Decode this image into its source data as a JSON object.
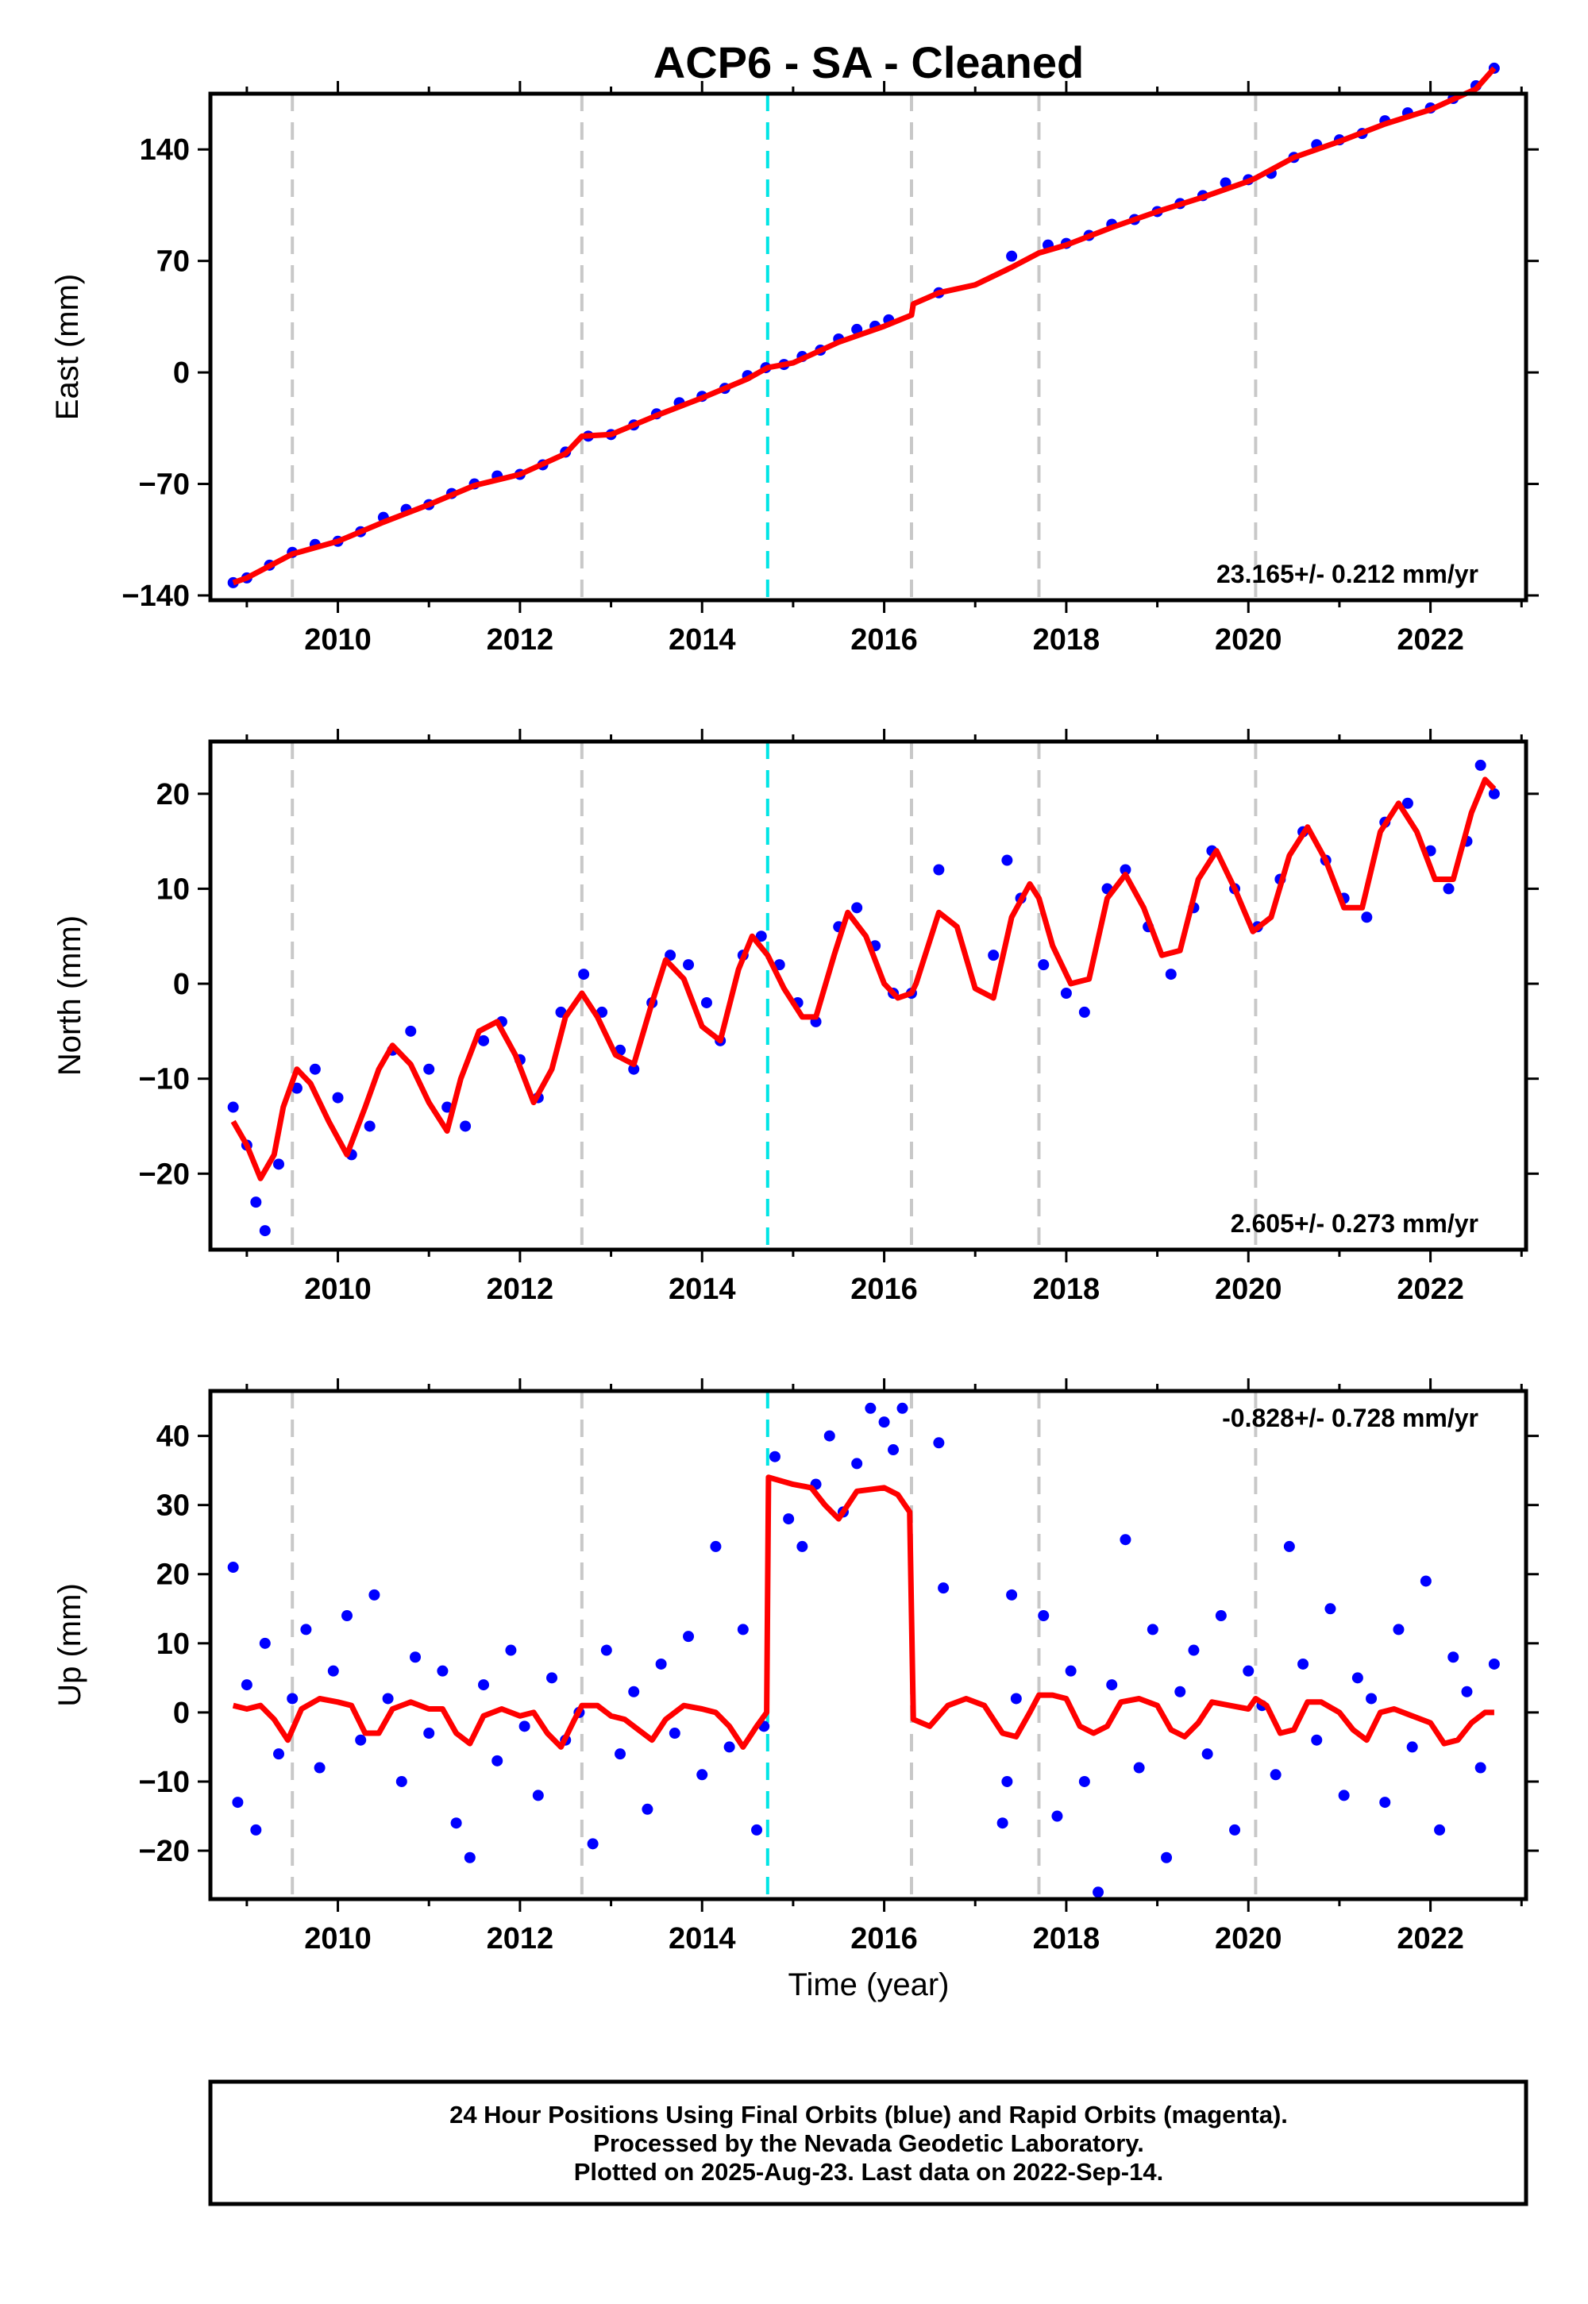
{
  "title": "ACP6  - SA - Cleaned",
  "footer": {
    "line1": "24 Hour Positions Using Final Orbits (blue) and Rapid Orbits (magenta).",
    "line2": "Processed by the Nevada Geodetic Laboratory.",
    "line3": "Plotted on 2025-Aug-23. Last data on 2022-Sep-14."
  },
  "colors": {
    "points": "#0000ff",
    "model": "#ff0000",
    "equipment_change": "#c8c8c8",
    "special_event": "#00e5e5"
  },
  "chart_data": [
    {
      "type": "scatter",
      "title": "",
      "xlabel": "",
      "ylabel": "East (mm)",
      "xlim": [
        2008.6,
        2023.05
      ],
      "ylim": [
        -143,
        175
      ],
      "x_ticks": [
        2010,
        2012,
        2014,
        2016,
        2018,
        2020,
        2022
      ],
      "y_ticks": [
        -140,
        -70,
        0,
        70,
        140
      ],
      "rate_text": "23.165+/- 0.212 mm/yr",
      "vertical_lines": {
        "gray": [
          2009.5,
          2012.68,
          2016.3,
          2017.7,
          2020.08
        ],
        "cyan": [
          2014.72
        ]
      },
      "series": [
        {
          "kind": "points",
          "x": [
            2008.85,
            2009.0,
            2009.25,
            2009.5,
            2009.75,
            2010.0,
            2010.25,
            2010.5,
            2010.75,
            2011.0,
            2011.25,
            2011.5,
            2011.75,
            2012.0,
            2012.25,
            2012.5,
            2012.75,
            2013.0,
            2013.25,
            2013.5,
            2013.75,
            2014.0,
            2014.25,
            2014.5,
            2014.7,
            2014.9,
            2015.1,
            2015.3,
            2015.5,
            2015.7,
            2015.9,
            2016.05,
            2016.6,
            2017.4,
            2017.8,
            2018.0,
            2018.25,
            2018.5,
            2018.75,
            2019.0,
            2019.25,
            2019.5,
            2019.75,
            2020.0,
            2020.25,
            2020.5,
            2020.75,
            2021.0,
            2021.25,
            2021.5,
            2021.75,
            2022.0,
            2022.25,
            2022.5,
            2022.7
          ],
          "y": [
            -132,
            -129,
            -121,
            -113,
            -108,
            -106,
            -100,
            -91,
            -86,
            -83,
            -76,
            -70,
            -65,
            -64,
            -58,
            -50,
            -40,
            -39,
            -33,
            -26,
            -19,
            -15,
            -10,
            -2,
            3,
            5,
            10,
            14,
            21,
            27,
            29,
            33,
            50,
            73,
            80,
            81,
            86,
            93,
            96,
            101,
            106,
            111,
            119,
            121,
            125,
            135,
            143,
            146,
            150,
            158,
            163,
            166,
            172,
            180,
            191
          ]
        },
        {
          "kind": "line",
          "x": [
            2008.85,
            2009.0,
            2009.5,
            2010.0,
            2010.5,
            2011.0,
            2011.5,
            2012.0,
            2012.5,
            2012.68,
            2013.0,
            2013.5,
            2014.0,
            2014.5,
            2014.72,
            2015.0,
            2015.5,
            2016.0,
            2016.3,
            2016.32,
            2016.6,
            2017.0,
            2017.4,
            2017.7,
            2018.0,
            2018.5,
            2019.0,
            2019.5,
            2020.0,
            2020.08,
            2020.5,
            2021.0,
            2021.5,
            2022.0,
            2022.5,
            2022.7
          ],
          "y": [
            -132,
            -129,
            -114,
            -106,
            -94,
            -83,
            -71,
            -64,
            -51,
            -40,
            -39,
            -27,
            -16,
            -4,
            3,
            6,
            19,
            29,
            36,
            43,
            50,
            55,
            66,
            75,
            80,
            91,
            101,
            110,
            120,
            122,
            135,
            145,
            156,
            165,
            178,
            191
          ]
        }
      ]
    },
    {
      "type": "scatter",
      "title": "",
      "xlabel": "",
      "ylabel": "North (mm)",
      "xlim": [
        2008.6,
        2023.05
      ],
      "ylim": [
        -28,
        25.5
      ],
      "x_ticks": [
        2010,
        2012,
        2014,
        2016,
        2018,
        2020,
        2022
      ],
      "y_ticks": [
        -20,
        -10,
        0,
        10,
        20
      ],
      "rate_text": "2.605+/- 0.273 mm/yr",
      "vertical_lines": {
        "gray": [
          2009.5,
          2012.68,
          2016.3,
          2017.7,
          2020.08
        ],
        "cyan": [
          2014.72
        ]
      },
      "series": [
        {
          "kind": "points",
          "x": [
            2008.85,
            2009.0,
            2009.1,
            2009.2,
            2009.35,
            2009.55,
            2009.75,
            2010.0,
            2010.15,
            2010.35,
            2010.6,
            2010.8,
            2011.0,
            2011.2,
            2011.4,
            2011.6,
            2011.8,
            2012.0,
            2012.2,
            2012.45,
            2012.7,
            2012.9,
            2013.1,
            2013.25,
            2013.45,
            2013.65,
            2013.85,
            2014.05,
            2014.2,
            2014.45,
            2014.65,
            2014.85,
            2015.05,
            2015.25,
            2015.5,
            2015.7,
            2015.9,
            2016.1,
            2016.3,
            2016.6,
            2017.2,
            2017.35,
            2017.5,
            2017.75,
            2018.0,
            2018.2,
            2018.45,
            2018.65,
            2018.9,
            2019.15,
            2019.4,
            2019.6,
            2019.85,
            2020.1,
            2020.35,
            2020.6,
            2020.85,
            2021.05,
            2021.3,
            2021.5,
            2021.75,
            2022.0,
            2022.2,
            2022.4,
            2022.55,
            2022.7
          ],
          "y": [
            -13,
            -17,
            -23,
            -26,
            -19,
            -11,
            -9,
            -12,
            -18,
            -15,
            -7,
            -5,
            -9,
            -13,
            -15,
            -6,
            -4,
            -8,
            -12,
            -3,
            1,
            -3,
            -7,
            -9,
            -2,
            3,
            2,
            -2,
            -6,
            3,
            5,
            2,
            -2,
            -4,
            6,
            8,
            4,
            -1,
            -1,
            12,
            3,
            13,
            9,
            2,
            -1,
            -3,
            10,
            12,
            6,
            1,
            8,
            14,
            10,
            6,
            11,
            16,
            13,
            9,
            7,
            17,
            19,
            14,
            10,
            15,
            23,
            20
          ]
        },
        {
          "kind": "line",
          "x": [
            2008.85,
            2009.0,
            2009.15,
            2009.3,
            2009.4,
            2009.55,
            2009.7,
            2009.9,
            2010.1,
            2010.3,
            2010.45,
            2010.6,
            2010.8,
            2011.0,
            2011.2,
            2011.35,
            2011.55,
            2011.75,
            2011.95,
            2012.15,
            2012.35,
            2012.5,
            2012.68,
            2012.85,
            2013.05,
            2013.25,
            2013.45,
            2013.6,
            2013.8,
            2014.0,
            2014.2,
            2014.4,
            2014.55,
            2014.72,
            2014.9,
            2015.1,
            2015.25,
            2015.45,
            2015.6,
            2015.8,
            2016.0,
            2016.15,
            2016.3,
            2016.35,
            2016.6,
            2016.8,
            2017.0,
            2017.2,
            2017.4,
            2017.6,
            2017.7,
            2017.85,
            2018.05,
            2018.25,
            2018.45,
            2018.65,
            2018.85,
            2019.05,
            2019.25,
            2019.45,
            2019.65,
            2019.85,
            2020.05,
            2020.25,
            2020.45,
            2020.65,
            2020.85,
            2021.05,
            2021.25,
            2021.45,
            2021.65,
            2021.85,
            2022.05,
            2022.25,
            2022.45,
            2022.6,
            2022.7
          ],
          "y": [
            -14.5,
            -17,
            -20.5,
            -18,
            -13,
            -9,
            -10.5,
            -14.5,
            -18,
            -13,
            -9,
            -6.5,
            -8.5,
            -12.5,
            -15.5,
            -10,
            -5,
            -4,
            -7.5,
            -12.5,
            -9,
            -3.5,
            -1,
            -3.5,
            -7.5,
            -8.5,
            -2,
            2.5,
            0.5,
            -4.5,
            -6,
            1.5,
            5,
            3,
            -0.5,
            -3.5,
            -3.5,
            3,
            7.5,
            5,
            0,
            -1.5,
            -1,
            0,
            7.5,
            6,
            -0.5,
            -1.5,
            7,
            10.5,
            9,
            4,
            0,
            0.5,
            9,
            11.5,
            8,
            3,
            3.5,
            11,
            14,
            10,
            5.5,
            7,
            13.5,
            16.5,
            13,
            8,
            8,
            16,
            19,
            16,
            11,
            11,
            18,
            21.5,
            20.5
          ]
        }
      ]
    },
    {
      "type": "scatter",
      "title": "",
      "xlabel": "Time (year)",
      "ylabel": "Up (mm)",
      "xlim": [
        2008.6,
        2023.05
      ],
      "ylim": [
        -27,
        46.5
      ],
      "x_ticks": [
        2010,
        2012,
        2014,
        2016,
        2018,
        2020,
        2022
      ],
      "y_ticks": [
        -20,
        -10,
        0,
        10,
        20,
        30,
        40
      ],
      "rate_text": "-0.828+/- 0.728 mm/yr",
      "vertical_lines": {
        "gray": [
          2009.5,
          2012.68,
          2016.3,
          2017.7,
          2020.08
        ],
        "cyan": [
          2014.72
        ]
      },
      "series": [
        {
          "kind": "points",
          "x": [
            2008.85,
            2008.9,
            2009.0,
            2009.1,
            2009.2,
            2009.35,
            2009.5,
            2009.65,
            2009.8,
            2009.95,
            2010.1,
            2010.25,
            2010.4,
            2010.55,
            2010.7,
            2010.85,
            2011.0,
            2011.15,
            2011.3,
            2011.45,
            2011.6,
            2011.75,
            2011.9,
            2012.05,
            2012.2,
            2012.35,
            2012.5,
            2012.65,
            2012.8,
            2012.95,
            2013.1,
            2013.25,
            2013.4,
            2013.55,
            2013.7,
            2013.85,
            2014.0,
            2014.15,
            2014.3,
            2014.45,
            2014.6,
            2014.68,
            2014.8,
            2014.95,
            2015.1,
            2015.25,
            2015.4,
            2015.55,
            2015.7,
            2015.85,
            2016.0,
            2016.1,
            2016.2,
            2016.6,
            2016.65,
            2017.3,
            2017.35,
            2017.4,
            2017.45,
            2017.75,
            2017.9,
            2018.05,
            2018.2,
            2018.35,
            2018.5,
            2018.65,
            2018.8,
            2018.95,
            2019.1,
            2019.25,
            2019.4,
            2019.55,
            2019.7,
            2019.85,
            2020.0,
            2020.15,
            2020.3,
            2020.45,
            2020.6,
            2020.75,
            2020.9,
            2021.05,
            2021.2,
            2021.35,
            2021.5,
            2021.65,
            2021.8,
            2021.95,
            2022.1,
            2022.25,
            2022.4,
            2022.55,
            2022.7
          ],
          "y": [
            21,
            -13,
            4,
            -17,
            10,
            -6,
            2,
            12,
            -8,
            6,
            14,
            -4,
            17,
            2,
            -10,
            8,
            -3,
            6,
            -16,
            -21,
            4,
            -7,
            9,
            -2,
            -12,
            5,
            -4,
            0,
            -19,
            9,
            -6,
            3,
            -14,
            7,
            -3,
            11,
            -9,
            24,
            -5,
            12,
            -17,
            -2,
            37,
            28,
            24,
            33,
            40,
            29,
            36,
            44,
            42,
            38,
            44,
            39,
            18,
            -16,
            -10,
            17,
            2,
            14,
            -15,
            6,
            -10,
            -26,
            4,
            25,
            -8,
            12,
            -21,
            3,
            9,
            -6,
            14,
            -17,
            6,
            1,
            -9,
            24,
            7,
            -4,
            15,
            -12,
            5,
            2,
            -13,
            12,
            -5,
            19,
            -17,
            8,
            3,
            -8,
            7
          ]
        },
        {
          "kind": "line",
          "x": [
            2008.85,
            2009.0,
            2009.15,
            2009.3,
            2009.45,
            2009.6,
            2009.8,
            2010.0,
            2010.15,
            2010.3,
            2010.45,
            2010.6,
            2010.8,
            2011.0,
            2011.15,
            2011.3,
            2011.45,
            2011.6,
            2011.8,
            2012.0,
            2012.15,
            2012.3,
            2012.45,
            2012.6,
            2012.68,
            2012.85,
            2013.0,
            2013.15,
            2013.3,
            2013.45,
            2013.6,
            2013.8,
            2014.0,
            2014.15,
            2014.3,
            2014.45,
            2014.6,
            2014.71,
            2014.73,
            2015.0,
            2015.2,
            2015.35,
            2015.5,
            2015.7,
            2016.0,
            2016.15,
            2016.28,
            2016.32,
            2016.5,
            2016.7,
            2016.9,
            2017.1,
            2017.3,
            2017.45,
            2017.6,
            2017.7,
            2017.85,
            2018.0,
            2018.15,
            2018.3,
            2018.45,
            2018.6,
            2018.8,
            2019.0,
            2019.15,
            2019.3,
            2019.45,
            2019.6,
            2019.8,
            2020.0,
            2020.08,
            2020.2,
            2020.35,
            2020.5,
            2020.65,
            2020.8,
            2021.0,
            2021.15,
            2021.3,
            2021.45,
            2021.6,
            2021.8,
            2022.0,
            2022.15,
            2022.3,
            2022.45,
            2022.6,
            2022.7
          ],
          "y": [
            1,
            0.5,
            1,
            -1,
            -4,
            0.5,
            2,
            1.5,
            1,
            -3,
            -3,
            0.5,
            1.5,
            0.5,
            0.5,
            -3,
            -4.5,
            -0.5,
            0.5,
            -0.5,
            0,
            -3,
            -5,
            -1,
            1,
            1,
            -0.5,
            -1,
            -2.5,
            -4,
            -1,
            1,
            0.5,
            0,
            -2,
            -5,
            -2,
            0,
            34,
            33,
            32.5,
            30,
            28,
            32,
            32.5,
            31.5,
            29,
            -1,
            -2,
            1,
            2,
            1,
            -3,
            -3.5,
            0,
            2.5,
            2.5,
            2,
            -2,
            -3,
            -2,
            1.5,
            2,
            1,
            -2.5,
            -3.5,
            -1.5,
            1.5,
            1,
            0.5,
            2,
            1,
            -3,
            -2.5,
            1.5,
            1.5,
            0,
            -2.5,
            -4,
            0,
            0.5,
            -0.5,
            -1.5,
            -4.5,
            -4,
            -1.5,
            0,
            0
          ]
        }
      ]
    }
  ]
}
